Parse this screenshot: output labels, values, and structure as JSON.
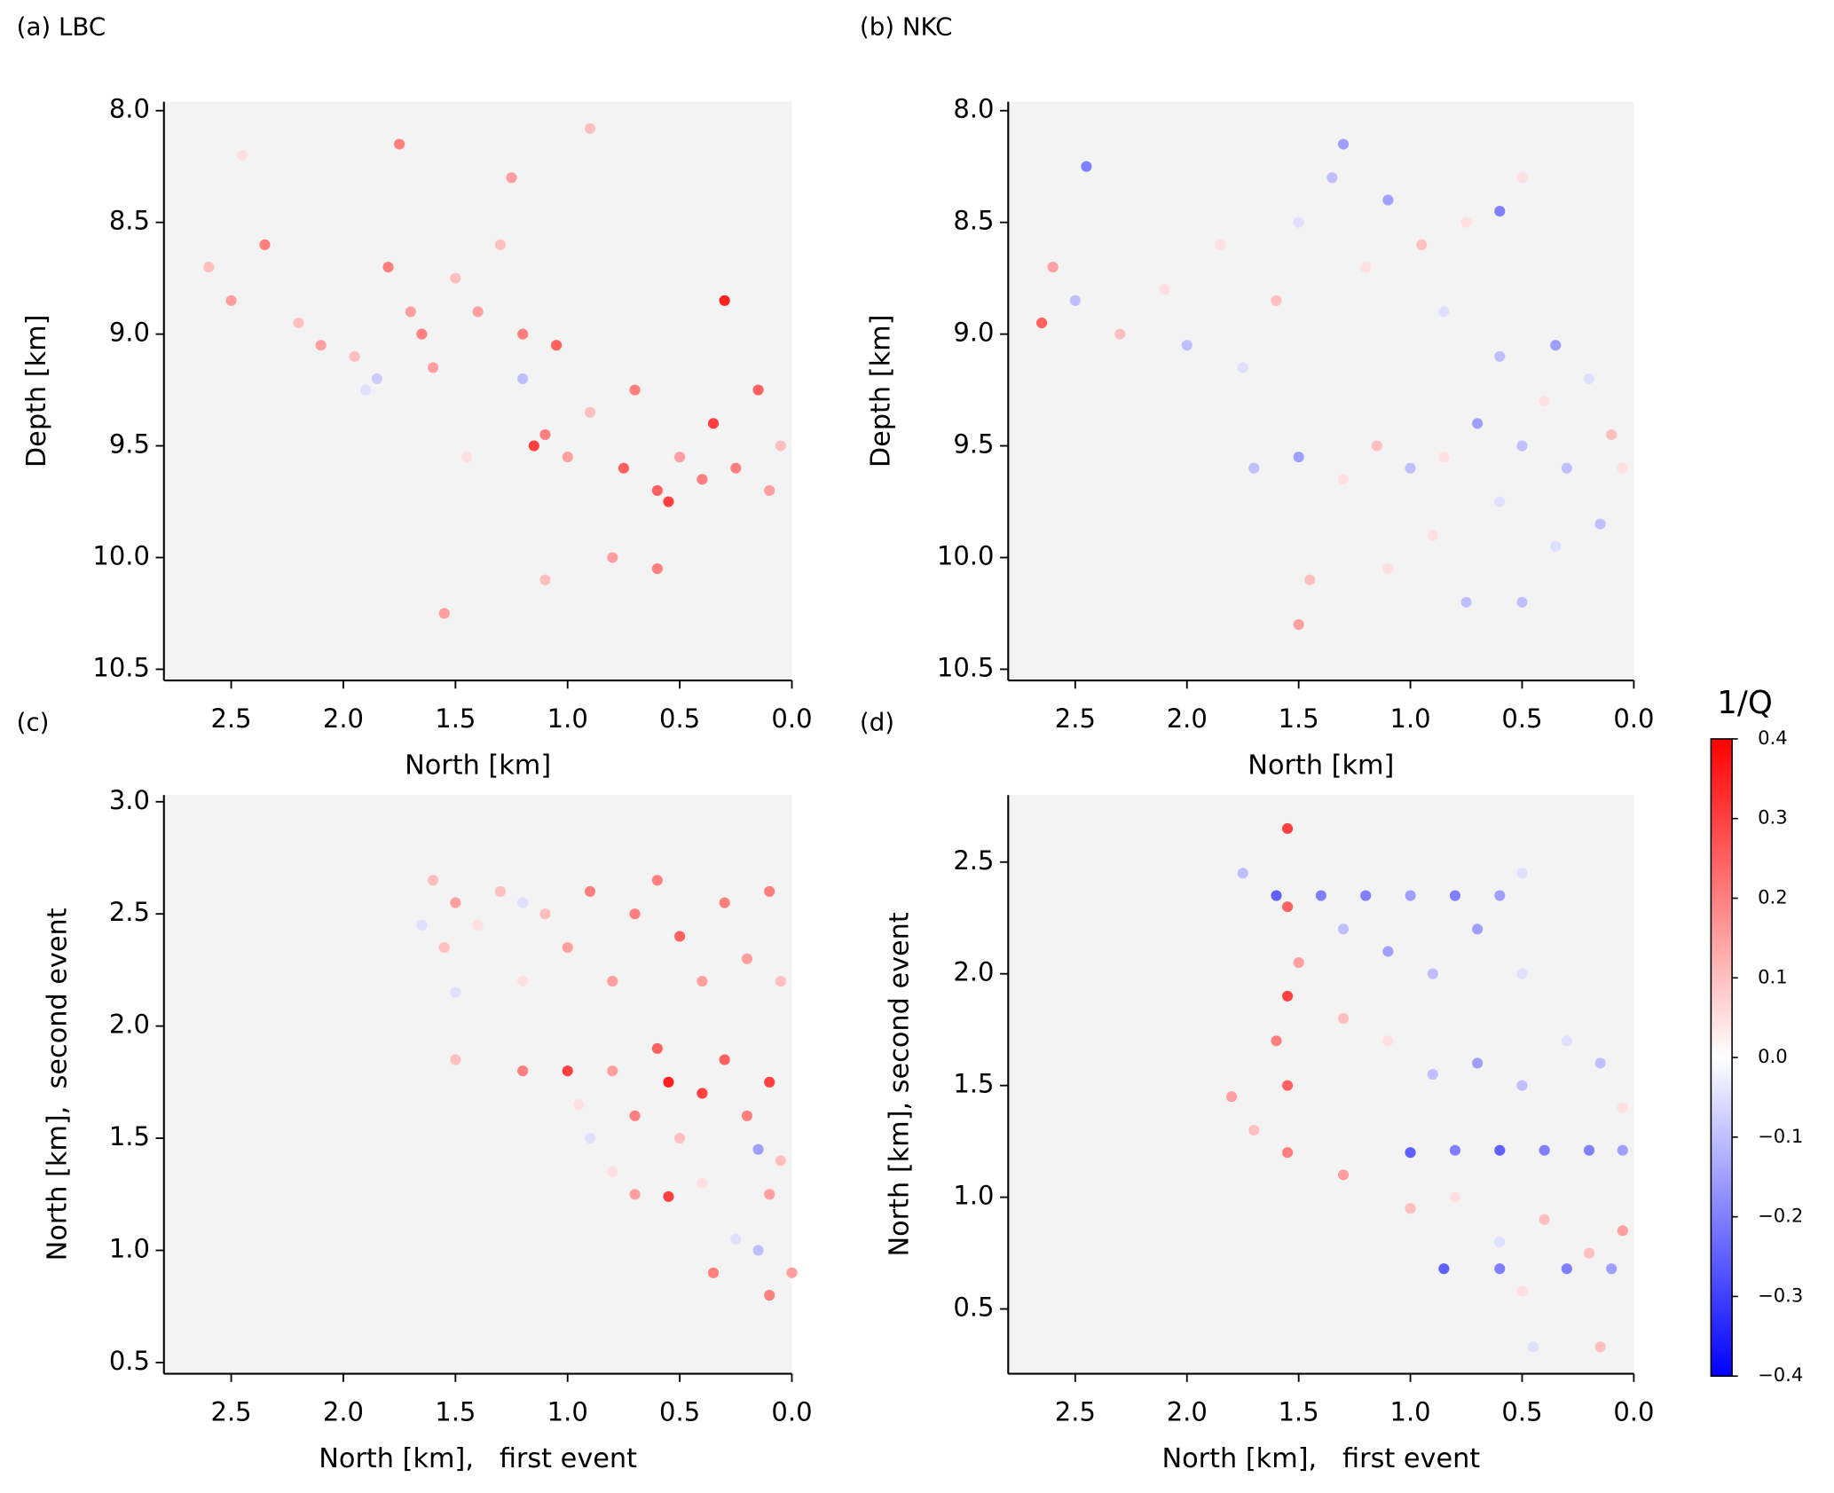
{
  "chart_data": [
    {
      "type": "scatter",
      "title": "(a) LBC",
      "xlabel": "North [km]",
      "ylabel": "Depth [km]",
      "xlim": [
        2.8,
        0
      ],
      "ylim": [
        10.55,
        7.96
      ],
      "xticks": [
        2.5,
        {
          "value": 2,
          "label": "2.0"
        },
        1.5,
        {
          "value": 1,
          "label": "1.0"
        },
        0.5,
        {
          "value": 0,
          "label": "0.0"
        }
      ],
      "yticks": [
        {
          "value": 8,
          "label": "8.0"
        },
        8.5,
        {
          "value": 9,
          "label": "9.0"
        },
        9.5,
        {
          "value": 10,
          "label": "10.0"
        },
        10.5
      ],
      "cmap": "bwr",
      "clim": [
        -0.4,
        0.4
      ],
      "x": [
        2.6,
        2.5,
        2.35,
        2.2,
        2.1,
        1.95,
        1.8,
        1.7,
        1.65,
        1.6,
        1.5,
        1.4,
        1.3,
        1.2,
        1.1,
        1.0,
        0.9,
        0.75,
        0.7,
        0.6,
        0.5,
        0.4,
        0.3,
        0.25,
        0.15,
        0.1,
        0.05,
        1.55,
        1.1,
        0.8,
        0.6,
        1.45,
        1.2,
        1.75,
        1.25,
        0.9,
        2.45,
        1.85,
        1.9,
        1.05,
        0.55,
        0.35,
        1.15
      ],
      "y": [
        8.7,
        8.85,
        8.6,
        8.95,
        9.05,
        9.1,
        8.7,
        8.9,
        9.0,
        9.15,
        8.75,
        8.9,
        8.6,
        9.0,
        9.45,
        9.55,
        9.35,
        9.6,
        9.25,
        9.7,
        9.55,
        9.65,
        8.85,
        9.6,
        9.25,
        9.7,
        9.5,
        10.25,
        10.1,
        10.0,
        10.05,
        9.55,
        9.2,
        8.15,
        8.3,
        8.08,
        8.2,
        9.2,
        9.25,
        9.05,
        9.75,
        9.4,
        9.5
      ],
      "c": [
        0.1,
        0.15,
        0.2,
        0.1,
        0.15,
        0.1,
        0.2,
        0.15,
        0.2,
        0.15,
        0.1,
        0.15,
        0.1,
        0.2,
        0.2,
        0.15,
        0.1,
        0.25,
        0.2,
        0.25,
        0.15,
        0.2,
        0.35,
        0.2,
        0.25,
        0.15,
        0.1,
        0.15,
        0.1,
        0.15,
        0.2,
        0.05,
        -0.1,
        0.2,
        0.15,
        0.1,
        0.05,
        -0.08,
        -0.05,
        0.25,
        0.3,
        0.3,
        0.3
      ]
    },
    {
      "type": "scatter",
      "title": "(b) NKC",
      "xlabel": "North [km]",
      "ylabel": "Depth [km]",
      "xlim": [
        2.8,
        0
      ],
      "ylim": [
        10.55,
        7.96
      ],
      "xticks": [
        2.5,
        {
          "value": 2,
          "label": "2.0"
        },
        1.5,
        {
          "value": 1,
          "label": "1.0"
        },
        0.5,
        {
          "value": 0,
          "label": "0.0"
        }
      ],
      "yticks": [
        {
          "value": 8,
          "label": "8.0"
        },
        8.5,
        {
          "value": 9,
          "label": "9.0"
        },
        9.5,
        {
          "value": 10,
          "label": "10.0"
        },
        10.5
      ],
      "cmap": "bwr",
      "clim": [
        -0.4,
        0.4
      ],
      "x": [
        2.65,
        2.6,
        2.5,
        2.45,
        2.3,
        2.1,
        2.0,
        1.85,
        1.75,
        1.6,
        1.5,
        1.35,
        1.2,
        1.1,
        0.95,
        0.85,
        0.75,
        1.3,
        0.6,
        0.5,
        1.7,
        1.5,
        1.3,
        1.15,
        1.0,
        0.85,
        0.7,
        0.6,
        0.5,
        0.4,
        0.3,
        0.2,
        0.1,
        0.05,
        0.15,
        0.35,
        0.5,
        1.5,
        1.45,
        1.1,
        0.75,
        0.9,
        0.6,
        0.35
      ],
      "y": [
        8.95,
        8.7,
        8.85,
        8.25,
        9.0,
        8.8,
        9.05,
        8.6,
        9.15,
        8.85,
        8.5,
        8.3,
        8.7,
        8.4,
        8.6,
        8.9,
        8.5,
        8.15,
        8.45,
        8.3,
        9.6,
        9.55,
        9.65,
        9.5,
        9.6,
        9.55,
        9.4,
        9.75,
        9.5,
        9.3,
        9.6,
        9.2,
        9.45,
        9.6,
        9.85,
        9.95,
        10.2,
        10.3,
        10.1,
        10.05,
        10.2,
        9.9,
        9.1,
        9.05
      ],
      "c": [
        0.25,
        0.15,
        -0.1,
        -0.2,
        0.1,
        0.05,
        -0.1,
        0.05,
        -0.05,
        0.1,
        -0.05,
        -0.1,
        0.05,
        -0.15,
        0.1,
        -0.05,
        0.05,
        -0.15,
        -0.2,
        0.05,
        -0.1,
        -0.15,
        0.05,
        0.1,
        -0.1,
        0.05,
        -0.15,
        -0.05,
        -0.1,
        0.05,
        -0.1,
        -0.05,
        0.1,
        0.05,
        -0.1,
        -0.05,
        -0.1,
        0.15,
        0.1,
        0.05,
        -0.1,
        0.05,
        -0.1,
        -0.15
      ]
    },
    {
      "type": "scatter",
      "title": "(c)",
      "xlabel": "North [km],   first event",
      "ylabel": "North [km],  second event",
      "xlim": [
        2.8,
        0
      ],
      "ylim": [
        0.45,
        3.03
      ],
      "xticks": [
        2.5,
        {
          "value": 2,
          "label": "2.0"
        },
        1.5,
        {
          "value": 1,
          "label": "1.0"
        },
        0.5,
        {
          "value": 0,
          "label": "0.0"
        }
      ],
      "yticks": [
        {
          "value": 3,
          "label": "3.0"
        },
        2.5,
        {
          "value": 2,
          "label": "2.0"
        },
        1.5,
        {
          "value": 1,
          "label": "1.0"
        },
        0.5
      ],
      "cmap": "bwr",
      "clim": [
        -0.4,
        0.4
      ],
      "x": [
        1.6,
        1.5,
        1.4,
        1.3,
        1.2,
        1.1,
        1.0,
        0.9,
        0.8,
        0.7,
        0.6,
        0.5,
        0.4,
        0.3,
        0.2,
        0.1,
        0.05,
        1.5,
        1.2,
        0.8,
        0.7,
        0.6,
        0.55,
        0.5,
        0.4,
        0.3,
        0.2,
        0.1,
        0.05,
        0.9,
        0.8,
        0.7,
        0.55,
        0.4,
        0.15,
        0.1,
        0.25,
        0.15,
        0.35,
        0.1,
        0.0,
        1.0,
        1.2,
        1.5,
        0.95,
        1.65,
        1.55
      ],
      "y": [
        2.65,
        2.55,
        2.45,
        2.6,
        2.2,
        2.5,
        2.35,
        2.6,
        2.2,
        2.5,
        2.65,
        2.4,
        2.2,
        2.55,
        2.3,
        2.6,
        2.2,
        2.15,
        2.55,
        1.8,
        1.6,
        1.9,
        1.75,
        1.5,
        1.7,
        1.85,
        1.6,
        1.75,
        1.4,
        1.5,
        1.35,
        1.25,
        1.24,
        1.3,
        1.45,
        1.25,
        1.05,
        1.0,
        0.9,
        0.8,
        0.9,
        1.8,
        1.8,
        1.85,
        1.65,
        2.45,
        2.35
      ],
      "c": [
        0.1,
        0.15,
        0.05,
        0.1,
        0.05,
        0.1,
        0.15,
        0.2,
        0.15,
        0.2,
        0.2,
        0.25,
        0.15,
        0.2,
        0.15,
        0.2,
        0.1,
        -0.05,
        -0.05,
        0.15,
        0.2,
        0.25,
        0.35,
        0.1,
        0.3,
        0.25,
        0.2,
        0.3,
        0.1,
        -0.05,
        0.05,
        0.15,
        0.3,
        0.05,
        -0.15,
        0.15,
        -0.05,
        -0.1,
        0.2,
        0.2,
        0.15,
        0.3,
        0.2,
        0.1,
        0.05,
        -0.05,
        0.1
      ]
    },
    {
      "type": "scatter",
      "title": "(d)",
      "xlabel": "North [km],   first event",
      "ylabel": "North [km], second event",
      "xlim": [
        2.8,
        0
      ],
      "ylim": [
        0.21,
        2.8
      ],
      "xticks": [
        2.5,
        {
          "value": 2,
          "label": "2.0"
        },
        1.5,
        {
          "value": 1,
          "label": "1.0"
        },
        0.5,
        {
          "value": 0,
          "label": "0.0"
        }
      ],
      "yticks": [
        2.5,
        {
          "value": 2,
          "label": "2.0"
        },
        1.5,
        {
          "value": 1,
          "label": "1.0"
        },
        0.5
      ],
      "cmap": "bwr",
      "clim": [
        -0.4,
        0.4
      ],
      "x": [
        1.55,
        1.55,
        1.55,
        1.55,
        1.55,
        1.6,
        1.5,
        1.75,
        1.6,
        1.4,
        1.2,
        1.0,
        0.8,
        0.6,
        0.5,
        1.3,
        1.1,
        0.9,
        0.7,
        0.5,
        1.3,
        1.1,
        0.9,
        0.7,
        0.5,
        0.3,
        0.15,
        0.05,
        1.0,
        0.8,
        0.6,
        0.4,
        0.2,
        0.05,
        1.0,
        0.8,
        0.6,
        0.4,
        0.2,
        0.05,
        0.85,
        0.6,
        0.3,
        0.1,
        0.5,
        0.45,
        0.15,
        1.8,
        1.7,
        1.3
      ],
      "y": [
        2.65,
        2.3,
        1.9,
        1.5,
        1.2,
        1.7,
        2.05,
        2.45,
        2.35,
        2.35,
        2.35,
        2.35,
        2.35,
        2.35,
        2.45,
        2.2,
        2.1,
        2.0,
        2.2,
        2.0,
        1.8,
        1.7,
        1.55,
        1.6,
        1.5,
        1.7,
        1.6,
        1.4,
        1.2,
        1.21,
        1.21,
        1.21,
        1.21,
        1.21,
        0.95,
        1.0,
        0.8,
        0.9,
        0.75,
        0.85,
        0.68,
        0.68,
        0.68,
        0.68,
        0.58,
        0.33,
        0.33,
        1.45,
        1.3,
        1.1
      ],
      "c": [
        0.3,
        0.25,
        0.3,
        0.25,
        0.2,
        0.2,
        0.15,
        -0.1,
        -0.25,
        -0.2,
        -0.2,
        -0.15,
        -0.2,
        -0.15,
        -0.05,
        -0.1,
        -0.15,
        -0.1,
        -0.15,
        -0.05,
        0.1,
        0.05,
        -0.1,
        -0.15,
        -0.1,
        -0.05,
        -0.1,
        0.05,
        -0.25,
        -0.2,
        -0.25,
        -0.2,
        -0.2,
        -0.15,
        0.1,
        0.05,
        -0.05,
        0.1,
        0.1,
        0.15,
        -0.25,
        -0.2,
        -0.2,
        -0.15,
        0.05,
        -0.05,
        0.1,
        0.15,
        0.1,
        0.15
      ]
    },
    {
      "type": "colorbar",
      "label": "1/Q",
      "cmap": "bwr",
      "clim": [
        -0.4,
        0.4
      ],
      "ticks": [
        0.4,
        0.3,
        0.2,
        0.1,
        {
          "value": 0,
          "label": "0.0"
        },
        {
          "value": -0.1,
          "label": "−0.1"
        },
        {
          "value": -0.2,
          "label": "−0.2"
        },
        {
          "value": -0.3,
          "label": "−0.3"
        },
        {
          "value": -0.4,
          "label": "−0.4"
        }
      ]
    }
  ]
}
